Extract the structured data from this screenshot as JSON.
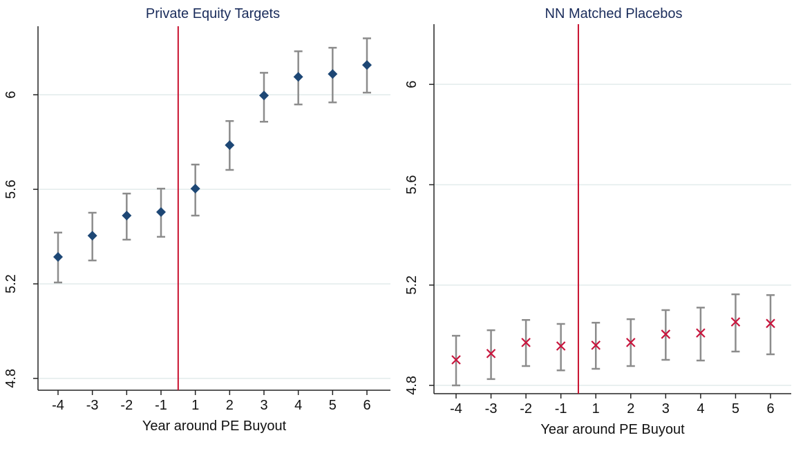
{
  "chart_data": [
    {
      "type": "errorbar",
      "title": "Private Equity Targets",
      "x_label": "Year around PE Buyout",
      "categories": [
        "-4",
        "-3",
        "-2",
        "-1",
        "1",
        "2",
        "3",
        "4",
        "5",
        "6"
      ],
      "values": [
        5.314,
        5.404,
        5.489,
        5.504,
        5.603,
        5.787,
        5.997,
        6.076,
        6.088,
        6.126
      ],
      "lower": [
        5.206,
        5.299,
        5.387,
        5.399,
        5.489,
        5.682,
        5.886,
        5.959,
        5.968,
        6.009
      ],
      "upper": [
        5.417,
        5.501,
        5.582,
        5.603,
        5.705,
        5.889,
        6.093,
        6.184,
        6.199,
        6.239
      ],
      "marker": "diamond",
      "color": "#1d4775",
      "error_color": "#8c8c8c",
      "ylim": [
        4.75,
        6.29
      ],
      "yticks": [
        4.8,
        5.2,
        5.6,
        6
      ],
      "grid": true
    },
    {
      "type": "errorbar",
      "title": "NN Matched Placebos",
      "x_label": "Year around PE Buyout",
      "categories": [
        "-4",
        "-3",
        "-2",
        "-1",
        "1",
        "2",
        "3",
        "4",
        "5",
        "6"
      ],
      "values": [
        4.902,
        4.927,
        4.971,
        4.957,
        4.96,
        4.971,
        5.004,
        5.009,
        5.053,
        5.047
      ],
      "lower": [
        4.8,
        4.825,
        4.877,
        4.86,
        4.866,
        4.877,
        4.902,
        4.899,
        4.935,
        4.924
      ],
      "upper": [
        4.998,
        5.02,
        5.061,
        5.045,
        5.05,
        5.064,
        5.1,
        5.11,
        5.163,
        5.16
      ],
      "marker": "x",
      "color": "#c8143c",
      "error_color": "#8c8c8c",
      "ylim": [
        4.767,
        6.24
      ],
      "yticks": [
        4.8,
        5.2,
        5.6,
        6
      ],
      "grid": true
    }
  ]
}
